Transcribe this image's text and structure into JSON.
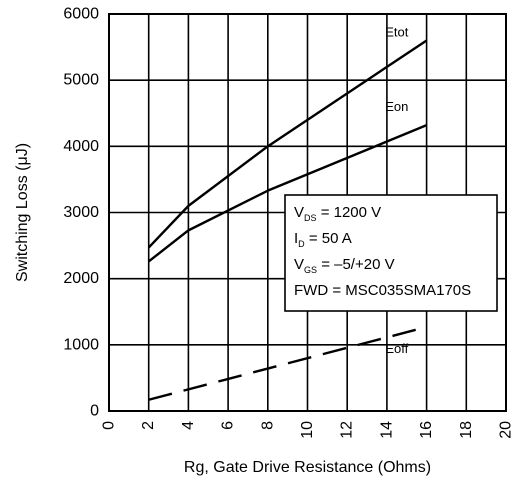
{
  "chart_data": {
    "type": "line",
    "xlabel": "Rg, Gate Drive Resistance (Ohms)",
    "ylabel": "Switching Loss (μJ)",
    "xlim": [
      0,
      20
    ],
    "ylim": [
      0,
      6000
    ],
    "x_ticks": [
      "0",
      "2",
      "4",
      "6",
      "8",
      "10",
      "12",
      "14",
      "16",
      "18",
      "20"
    ],
    "y_ticks": [
      "0",
      "1000",
      "2000",
      "3000",
      "4000",
      "5000",
      "6000"
    ],
    "grid": true,
    "series": [
      {
        "name": "Etot",
        "style": "solid",
        "x": [
          2,
          4,
          8,
          16
        ],
        "y": [
          2470,
          3100,
          4000,
          5600
        ]
      },
      {
        "name": "Eon",
        "style": "solid",
        "x": [
          2,
          4,
          8,
          16
        ],
        "y": [
          2260,
          2730,
          3330,
          4320
        ]
      },
      {
        "name": "Eoff",
        "style": "dashed",
        "x": [
          2,
          16
        ],
        "y": [
          170,
          1270
        ]
      }
    ],
    "annotation": {
      "lines": [
        {
          "main": "V",
          "sub": "DS",
          "rest": " = 1200 V"
        },
        {
          "main": "I",
          "sub": "D",
          "rest": " = 50 A"
        },
        {
          "main": "V",
          "sub": "GS",
          "rest": " = –5/+20 V"
        },
        {
          "main": "FWD = MSC035SMA170S",
          "sub": "",
          "rest": ""
        }
      ]
    },
    "colors": {
      "line": "#000000",
      "grid": "#000000",
      "background": "#ffffff"
    }
  }
}
